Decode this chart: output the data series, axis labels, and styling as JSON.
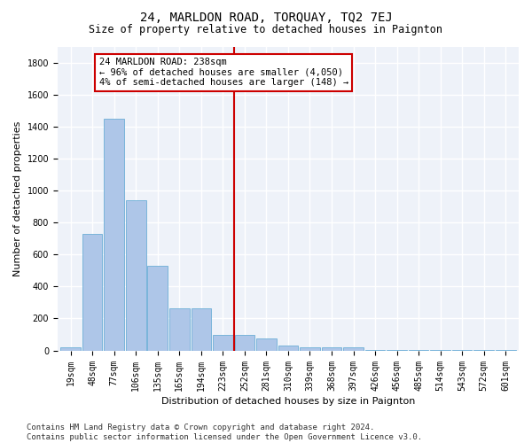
{
  "title": "24, MARLDON ROAD, TORQUAY, TQ2 7EJ",
  "subtitle": "Size of property relative to detached houses in Paignton",
  "xlabel": "Distribution of detached houses by size in Paignton",
  "ylabel": "Number of detached properties",
  "bar_color": "#aec6e8",
  "bar_edge_color": "#6baed6",
  "background_color": "#eef2f9",
  "grid_color": "#ffffff",
  "vline_color": "#cc0000",
  "annotation_text": "24 MARLDON ROAD: 238sqm\n← 96% of detached houses are smaller (4,050)\n4% of semi-detached houses are larger (148) →",
  "annotation_box_color": "#cc0000",
  "categories": [
    "19sqm",
    "48sqm",
    "77sqm",
    "106sqm",
    "135sqm",
    "165sqm",
    "194sqm",
    "223sqm",
    "252sqm",
    "281sqm",
    "310sqm",
    "339sqm",
    "368sqm",
    "397sqm",
    "426sqm",
    "456sqm",
    "485sqm",
    "514sqm",
    "543sqm",
    "572sqm",
    "601sqm"
  ],
  "values": [
    20,
    730,
    1450,
    940,
    530,
    265,
    265,
    100,
    100,
    75,
    30,
    18,
    18,
    18,
    5,
    5,
    5,
    5,
    5,
    5,
    5
  ],
  "ylim": [
    0,
    1900
  ],
  "yticks": [
    0,
    200,
    400,
    600,
    800,
    1000,
    1200,
    1400,
    1600,
    1800
  ],
  "footer": "Contains HM Land Registry data © Crown copyright and database right 2024.\nContains public sector information licensed under the Open Government Licence v3.0.",
  "title_fontsize": 10,
  "subtitle_fontsize": 8.5,
  "axis_label_fontsize": 8,
  "tick_fontsize": 7,
  "footer_fontsize": 6.5,
  "annotation_fontsize": 7.5
}
